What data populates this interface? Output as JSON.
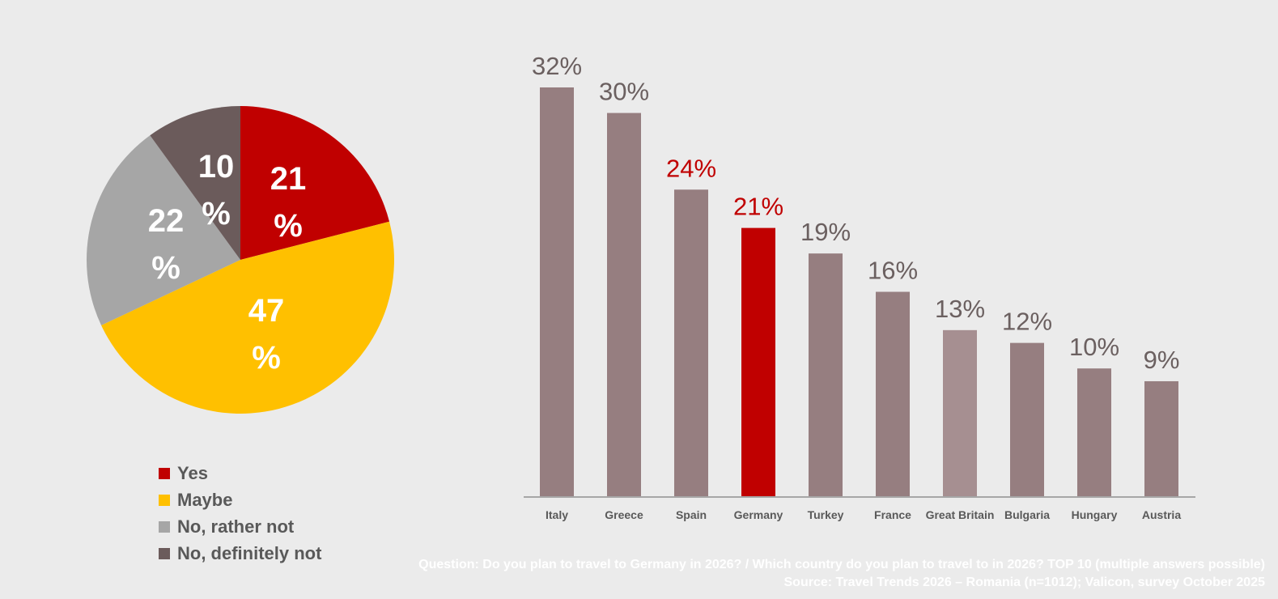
{
  "colors": {
    "yes": "#c00000",
    "maybe": "#ffc000",
    "rather_not": "#a6a6a6",
    "definitely_not": "#6b5b5b",
    "bar_default": "#967e80",
    "bar_gb": "#a68f91",
    "bar_highlight": "#c00000",
    "value_default": "#6b6060",
    "value_highlight": "#c00000"
  },
  "chart_data": [
    {
      "type": "pie",
      "slices": [
        {
          "name": "Yes",
          "value": 21,
          "label_line1": "21",
          "label_line2": "%",
          "color_key": "yes"
        },
        {
          "name": "Maybe",
          "value": 47,
          "label_line1": "47",
          "label_line2": "%",
          "color_key": "maybe"
        },
        {
          "name": "No, rather not",
          "value": 22,
          "label_line1": "22",
          "label_line2": "%",
          "color_key": "rather_not"
        },
        {
          "name": "No, definitely not",
          "value": 10,
          "label_line1": "10",
          "label_line2": "%",
          "color_key": "definitely_not"
        }
      ],
      "legend": [
        "Yes",
        "Maybe",
        "No, rather not",
        "No, definitely not"
      ],
      "legend_placement": "bottom"
    },
    {
      "type": "bar",
      "categories": [
        "Italy",
        "Greece",
        "Spain",
        "Germany",
        "Turkey",
        "France",
        "Great Britain",
        "Bulgaria",
        "Hungary",
        "Austria"
      ],
      "values": [
        32,
        30,
        24,
        21,
        19,
        16,
        13,
        12,
        10,
        9
      ],
      "value_labels": [
        "32%",
        "30%",
        "24%",
        "21%",
        "19%",
        "16%",
        "13%",
        "12%",
        "10%",
        "9%"
      ],
      "highlight_bar": "Germany",
      "highlight_labels": [
        "Spain",
        "Germany"
      ],
      "ylim": [
        0,
        32
      ],
      "grid": false
    }
  ],
  "footnote": {
    "question": "Question: Do you plan to travel to Germany in 2026? / Which country do you plan to travel to in 2026? TOP 10 (multiple answers possible)",
    "source": "Source: Travel Trends 2026 – Romania (n=1012); Valicon, survey October 2025"
  }
}
